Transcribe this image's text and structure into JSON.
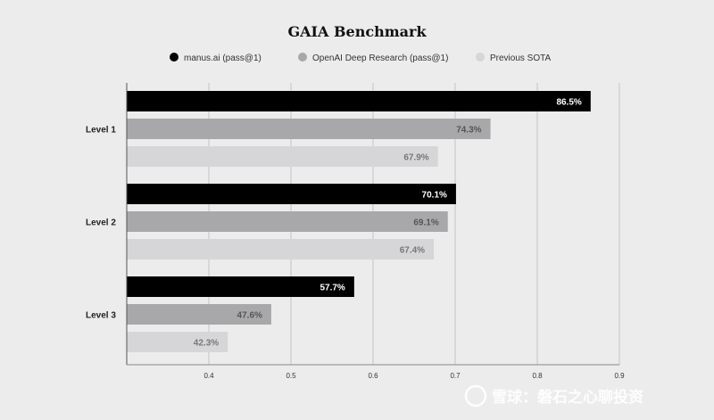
{
  "chart_data": {
    "type": "bar",
    "orientation": "horizontal",
    "title": "GAIA Benchmark",
    "categories": [
      "Level 1",
      "Level 2",
      "Level 3"
    ],
    "series": [
      {
        "name": "manus.ai (pass@1)",
        "values": [
          0.865,
          0.701,
          0.577
        ],
        "labels": [
          "86.5%",
          "70.1%",
          "57.7%"
        ],
        "color": "#000000",
        "label_color": "#ffffff"
      },
      {
        "name": "OpenAI Deep Research (pass@1)",
        "values": [
          0.743,
          0.691,
          0.476
        ],
        "labels": [
          "74.3%",
          "69.1%",
          "47.6%"
        ],
        "color": "#a8a8aa",
        "label_color": "#555555"
      },
      {
        "name": "Previous SOTA",
        "values": [
          0.679,
          0.674,
          0.423
        ],
        "labels": [
          "67.9%",
          "67.4%",
          "42.3%"
        ],
        "color": "#d6d6d8",
        "label_color": "#777777"
      }
    ],
    "xlim": [
      0.3,
      0.9
    ],
    "xticks": [
      0.4,
      0.5,
      0.6,
      0.7,
      0.8,
      0.9
    ],
    "xtick_labels": [
      "0.4",
      "0.5",
      "0.6",
      "0.7",
      "0.8",
      "0.9"
    ],
    "grid": true,
    "legend_position": "top-center",
    "xlabel": "",
    "ylabel": ""
  },
  "watermark": "雪球：磐石之心聊投资"
}
